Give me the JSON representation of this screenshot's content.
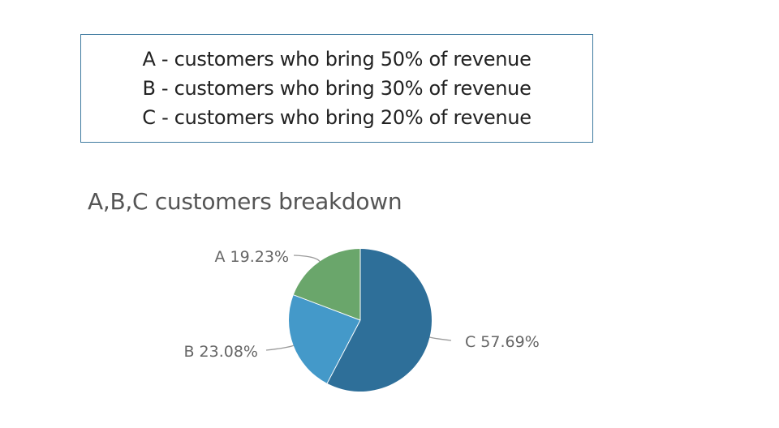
{
  "legend_box": {
    "lines": [
      "A - customers who bring 50% of revenue",
      "B - customers who bring 30% of revenue",
      "C - customers who bring 20% of revenue"
    ]
  },
  "chart_data": {
    "type": "pie",
    "title": "A,B,C customers breakdown",
    "slices": [
      {
        "name": "C",
        "value": 57.69,
        "label": "C 57.69%",
        "color": "#2e6f99"
      },
      {
        "name": "B",
        "value": 23.08,
        "label": "B 23.08%",
        "color": "#4499c9"
      },
      {
        "name": "A",
        "value": 19.23,
        "label": "A 19.23%",
        "color": "#6aa66b"
      }
    ],
    "start": "top",
    "direction": "clockwise"
  }
}
